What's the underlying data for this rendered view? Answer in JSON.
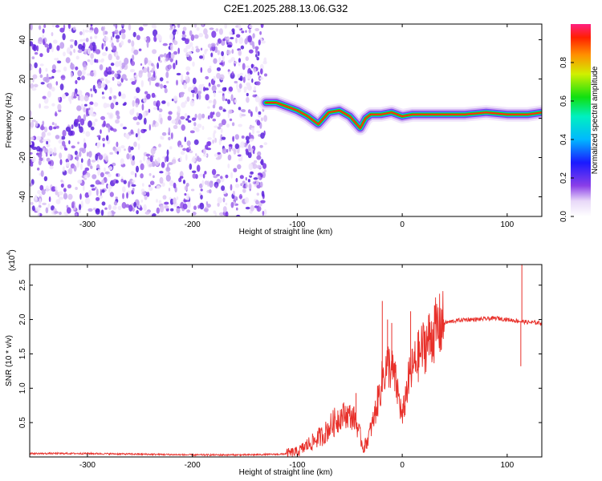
{
  "chart_data": [
    {
      "type": "heatmap",
      "title": "C2E1.2025.288.13.06.G32",
      "xlabel": "Height of straight line (km)",
      "ylabel": "Frequency (Hz)",
      "xlim": [
        -355,
        133
      ],
      "ylim": [
        -50,
        48
      ],
      "xticks": [
        -300,
        -200,
        -100,
        0,
        100
      ],
      "yticks": [
        -40,
        -20,
        0,
        20,
        40
      ],
      "noise_region_x": [
        -355,
        -130
      ],
      "carrier_track": [
        {
          "x": -130,
          "f": 8
        },
        {
          "x": -120,
          "f": 8
        },
        {
          "x": -110,
          "f": 6
        },
        {
          "x": -100,
          "f": 4
        },
        {
          "x": -90,
          "f": 1
        },
        {
          "x": -80,
          "f": -3
        },
        {
          "x": -70,
          "f": 3
        },
        {
          "x": -60,
          "f": 4
        },
        {
          "x": -50,
          "f": 1
        },
        {
          "x": -45,
          "f": -2
        },
        {
          "x": -40,
          "f": -5
        },
        {
          "x": -35,
          "f": 0
        },
        {
          "x": -30,
          "f": 2
        },
        {
          "x": -20,
          "f": 2
        },
        {
          "x": -10,
          "f": 3
        },
        {
          "x": 0,
          "f": 1
        },
        {
          "x": 10,
          "f": 2
        },
        {
          "x": 20,
          "f": 2
        },
        {
          "x": 40,
          "f": 2
        },
        {
          "x": 60,
          "f": 2
        },
        {
          "x": 80,
          "f": 3
        },
        {
          "x": 100,
          "f": 2
        },
        {
          "x": 120,
          "f": 2
        },
        {
          "x": 133,
          "f": 3
        }
      ],
      "colorbar": {
        "label": "Normalized spectral amplitude",
        "range": [
          0,
          1
        ],
        "ticks": [
          "0.0",
          "0.2",
          "0.4",
          "0.6",
          "0.8"
        ]
      }
    },
    {
      "type": "line",
      "xlabel": "Height of straight line (km)",
      "ylabel": "SNR (10 * v/v)",
      "yscale_label": "(x10",
      "yscale_exp": "4",
      "xlim": [
        -355,
        133
      ],
      "ylim": [
        0,
        2.8
      ],
      "xticks": [
        -300,
        -200,
        -100,
        0,
        100
      ],
      "yticks": [
        0.5,
        1.0,
        1.5,
        2.0,
        2.5
      ],
      "series": [
        {
          "name": "SNR",
          "color": "#e8302a",
          "points": [
            {
              "x": -355,
              "y": 0.05
            },
            {
              "x": -300,
              "y": 0.05
            },
            {
              "x": -250,
              "y": 0.04
            },
            {
              "x": -200,
              "y": 0.03
            },
            {
              "x": -150,
              "y": 0.03
            },
            {
              "x": -115,
              "y": 0.04
            },
            {
              "x": -100,
              "y": 0.07
            },
            {
              "x": -95,
              "y": 0.12
            },
            {
              "x": -90,
              "y": 0.18
            },
            {
              "x": -85,
              "y": 0.22
            },
            {
              "x": -80,
              "y": 0.28
            },
            {
              "x": -75,
              "y": 0.32
            },
            {
              "x": -70,
              "y": 0.42
            },
            {
              "x": -65,
              "y": 0.5
            },
            {
              "x": -60,
              "y": 0.58
            },
            {
              "x": -55,
              "y": 0.62
            },
            {
              "x": -50,
              "y": 0.6
            },
            {
              "x": -45,
              "y": 0.55
            },
            {
              "x": -40,
              "y": 0.3
            },
            {
              "x": -37,
              "y": 0.12
            },
            {
              "x": -33,
              "y": 0.25
            },
            {
              "x": -28,
              "y": 0.5
            },
            {
              "x": -22,
              "y": 0.9
            },
            {
              "x": -18,
              "y": 1.2
            },
            {
              "x": -13,
              "y": 1.35
            },
            {
              "x": -8,
              "y": 1.2
            },
            {
              "x": -3,
              "y": 0.85
            },
            {
              "x": 0,
              "y": 0.55
            },
            {
              "x": 5,
              "y": 1.05
            },
            {
              "x": 10,
              "y": 1.3
            },
            {
              "x": 15,
              "y": 1.45
            },
            {
              "x": 20,
              "y": 1.6
            },
            {
              "x": 25,
              "y": 1.7
            },
            {
              "x": 30,
              "y": 1.82
            },
            {
              "x": 35,
              "y": 1.9
            },
            {
              "x": 40,
              "y": 1.95
            },
            {
              "x": 50,
              "y": 1.98
            },
            {
              "x": 60,
              "y": 2.0
            },
            {
              "x": 70,
              "y": 2.0
            },
            {
              "x": 80,
              "y": 2.01
            },
            {
              "x": 90,
              "y": 2.02
            },
            {
              "x": 100,
              "y": 2.0
            },
            {
              "x": 110,
              "y": 1.98
            },
            {
              "x": 115,
              "y": 1.97
            },
            {
              "x": 120,
              "y": 1.96
            },
            {
              "x": 133,
              "y": 1.95
            }
          ],
          "spikes": [
            {
              "x": -19,
              "y": 2.27
            },
            {
              "x": -14,
              "y": 2.0
            },
            {
              "x": -10,
              "y": 1.95
            },
            {
              "x": 8,
              "y": 2.12
            },
            {
              "x": -44,
              "y": 0.93
            },
            {
              "x": 114,
              "y": 2.8
            },
            {
              "x": 113,
              "y": 1.32
            }
          ]
        }
      ]
    }
  ]
}
